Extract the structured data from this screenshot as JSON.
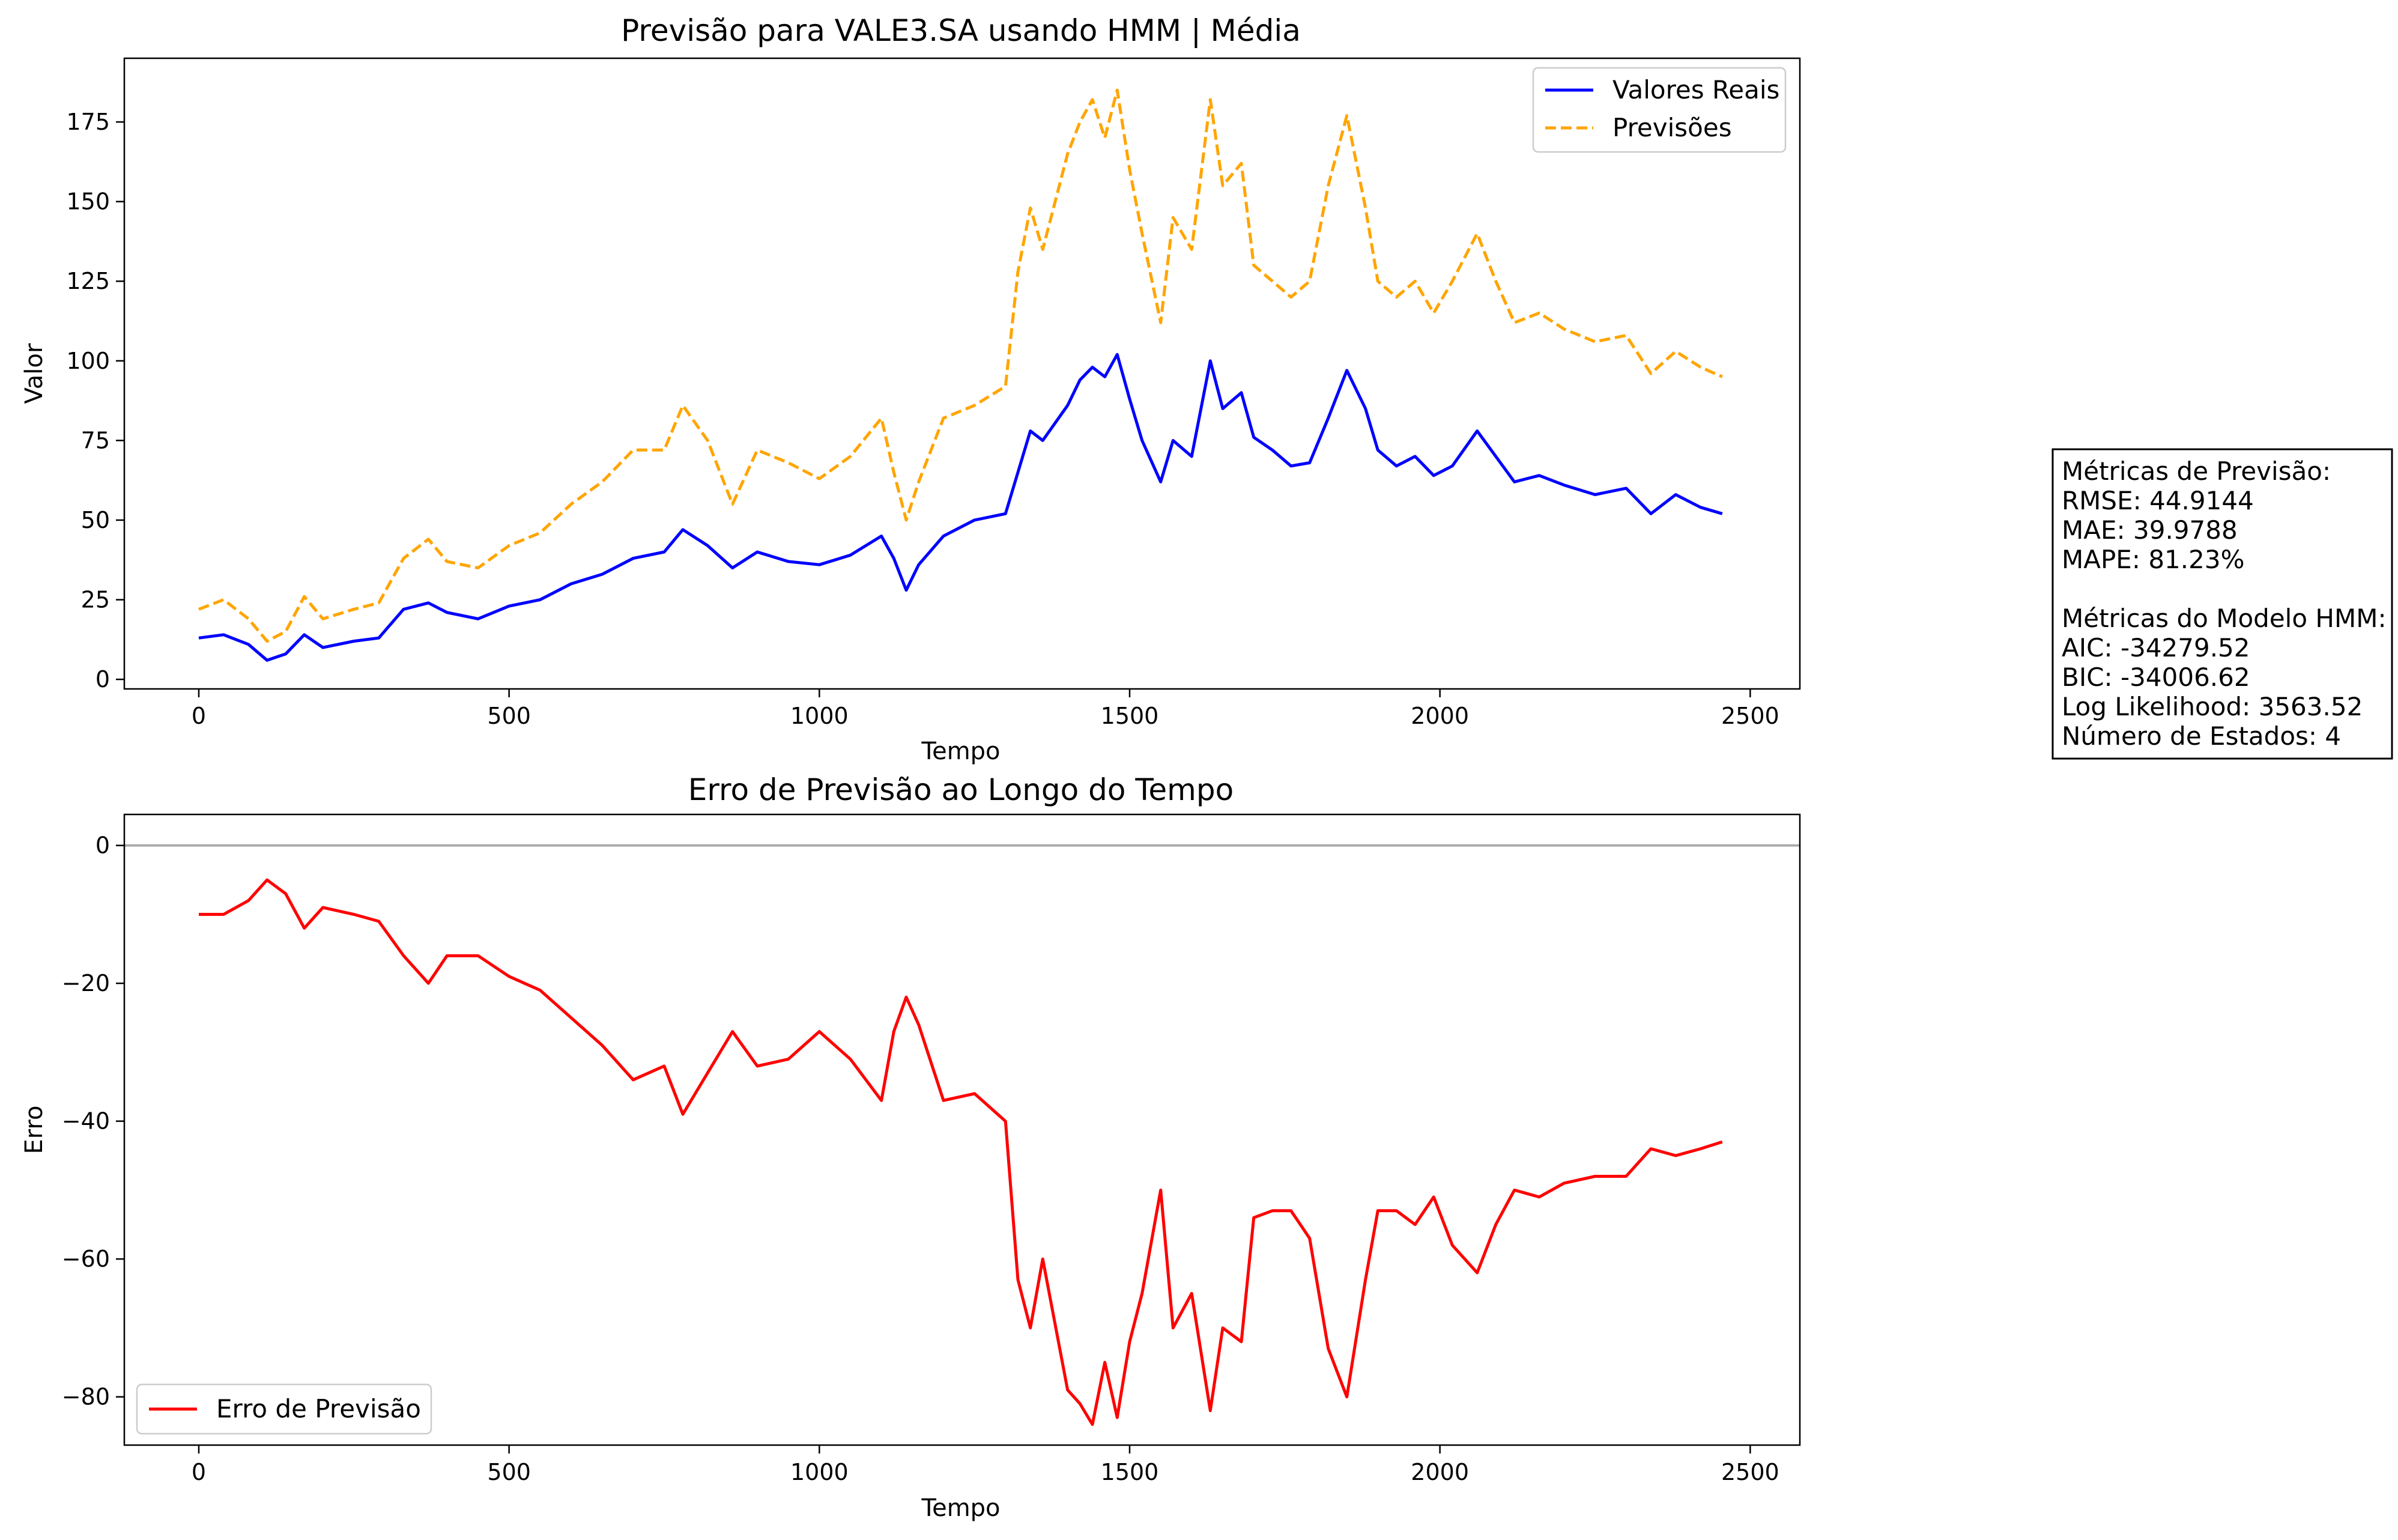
{
  "chart_data": [
    {
      "type": "line",
      "title": "Previsão para VALE3.SA usando HMM | Média",
      "xlabel": "Tempo",
      "ylabel": "Valor",
      "xlim": [
        -120,
        2580
      ],
      "ylim": [
        -3,
        195
      ],
      "xticks": [
        0,
        500,
        1000,
        1500,
        2000,
        2500
      ],
      "yticks": [
        0,
        25,
        50,
        75,
        100,
        125,
        150,
        175
      ],
      "grid": false,
      "legend_position": "top-right",
      "series": [
        {
          "name": "Valores Reais",
          "color": "#0000ff",
          "style": "solid",
          "x": [
            0,
            40,
            80,
            110,
            140,
            170,
            200,
            250,
            290,
            330,
            370,
            400,
            450,
            500,
            550,
            600,
            650,
            700,
            750,
            780,
            820,
            860,
            900,
            950,
            1000,
            1050,
            1100,
            1120,
            1140,
            1160,
            1200,
            1250,
            1300,
            1320,
            1340,
            1360,
            1400,
            1420,
            1440,
            1460,
            1480,
            1500,
            1520,
            1550,
            1570,
            1600,
            1630,
            1650,
            1680,
            1700,
            1730,
            1760,
            1790,
            1820,
            1850,
            1880,
            1900,
            1930,
            1960,
            1990,
            2020,
            2060,
            2090,
            2120,
            2160,
            2200,
            2250,
            2300,
            2340,
            2380,
            2420,
            2455
          ],
          "y": [
            13,
            14,
            11,
            6,
            8,
            14,
            10,
            12,
            13,
            22,
            24,
            21,
            19,
            23,
            25,
            30,
            33,
            38,
            40,
            47,
            42,
            35,
            40,
            37,
            36,
            39,
            45,
            38,
            28,
            36,
            45,
            50,
            52,
            65,
            78,
            75,
            86,
            94,
            98,
            95,
            102,
            88,
            75,
            62,
            75,
            70,
            100,
            85,
            90,
            76,
            72,
            67,
            68,
            82,
            97,
            85,
            72,
            67,
            70,
            64,
            67,
            78,
            70,
            62,
            64,
            61,
            58,
            60,
            52,
            58,
            54,
            52
          ]
        },
        {
          "name": "Previsões",
          "color": "#ffa500",
          "style": "dashed",
          "x": [
            0,
            40,
            80,
            110,
            140,
            170,
            200,
            250,
            290,
            330,
            370,
            400,
            450,
            500,
            550,
            600,
            650,
            700,
            750,
            780,
            820,
            860,
            900,
            950,
            1000,
            1050,
            1100,
            1120,
            1140,
            1160,
            1200,
            1250,
            1300,
            1320,
            1340,
            1360,
            1400,
            1420,
            1440,
            1460,
            1480,
            1500,
            1520,
            1550,
            1570,
            1600,
            1630,
            1650,
            1680,
            1700,
            1730,
            1760,
            1790,
            1820,
            1850,
            1880,
            1900,
            1930,
            1960,
            1990,
            2020,
            2060,
            2090,
            2120,
            2160,
            2200,
            2250,
            2300,
            2340,
            2380,
            2420,
            2455
          ],
          "y": [
            22,
            25,
            19,
            12,
            15,
            26,
            19,
            22,
            24,
            38,
            44,
            37,
            35,
            42,
            46,
            55,
            62,
            72,
            72,
            86,
            75,
            55,
            72,
            68,
            63,
            70,
            82,
            65,
            50,
            62,
            82,
            86,
            92,
            128,
            148,
            135,
            165,
            175,
            182,
            170,
            185,
            160,
            140,
            112,
            145,
            135,
            182,
            155,
            162,
            130,
            125,
            120,
            125,
            155,
            177,
            148,
            125,
            120,
            125,
            115,
            125,
            140,
            125,
            112,
            115,
            110,
            106,
            108,
            96,
            103,
            98,
            95
          ]
        }
      ]
    },
    {
      "type": "line",
      "title": "Erro de Previsão ao Longo do Tempo",
      "xlabel": "Tempo",
      "ylabel": "Erro",
      "xlim": [
        -120,
        2580
      ],
      "ylim": [
        -87,
        4.5
      ],
      "xticks": [
        0,
        500,
        1000,
        1500,
        2000,
        2500
      ],
      "yticks": [
        0,
        -20,
        -40,
        -60,
        -80
      ],
      "grid": false,
      "reference_line": 0,
      "legend_position": "bottom-left",
      "series": [
        {
          "name": "Erro de Previsão",
          "color": "#ff0000",
          "style": "solid",
          "x": [
            0,
            40,
            80,
            110,
            140,
            170,
            200,
            250,
            290,
            330,
            370,
            400,
            450,
            500,
            550,
            600,
            650,
            700,
            750,
            780,
            820,
            860,
            900,
            950,
            1000,
            1050,
            1100,
            1120,
            1140,
            1160,
            1200,
            1250,
            1300,
            1320,
            1340,
            1360,
            1400,
            1420,
            1440,
            1460,
            1480,
            1500,
            1520,
            1550,
            1570,
            1600,
            1630,
            1650,
            1680,
            1700,
            1730,
            1760,
            1790,
            1820,
            1850,
            1880,
            1900,
            1930,
            1960,
            1990,
            2020,
            2060,
            2090,
            2120,
            2160,
            2200,
            2250,
            2300,
            2340,
            2380,
            2420,
            2455
          ],
          "y": [
            -10,
            -10,
            -8,
            -5,
            -7,
            -12,
            -9,
            -10,
            -11,
            -16,
            -20,
            -16,
            -16,
            -19,
            -21,
            -25,
            -29,
            -34,
            -32,
            -39,
            -33,
            -27,
            -32,
            -31,
            -27,
            -31,
            -37,
            -27,
            -22,
            -26,
            -37,
            -36,
            -40,
            -63,
            -70,
            -60,
            -79,
            -81,
            -84,
            -75,
            -83,
            -72,
            -65,
            -50,
            -70,
            -65,
            -82,
            -70,
            -72,
            -54,
            -53,
            -53,
            -57,
            -73,
            -80,
            -63,
            -53,
            -53,
            -55,
            -51,
            -58,
            -62,
            -55,
            -50,
            -51,
            -49,
            -48,
            -48,
            -44,
            -45,
            -44,
            -43
          ]
        }
      ]
    }
  ],
  "metrics_box": {
    "lines": [
      "Métricas de Previsão:",
      "RMSE: 44.9144",
      "MAE: 39.9788",
      "MAPE: 81.23%",
      "",
      "Métricas do Modelo HMM:",
      "AIC: -34279.52",
      "BIC: -34006.62",
      "Log Likelihood: 3563.52",
      "Número de Estados: 4"
    ]
  },
  "colors": {
    "reference_line": "#aaaaaa",
    "axes": "#000000"
  }
}
